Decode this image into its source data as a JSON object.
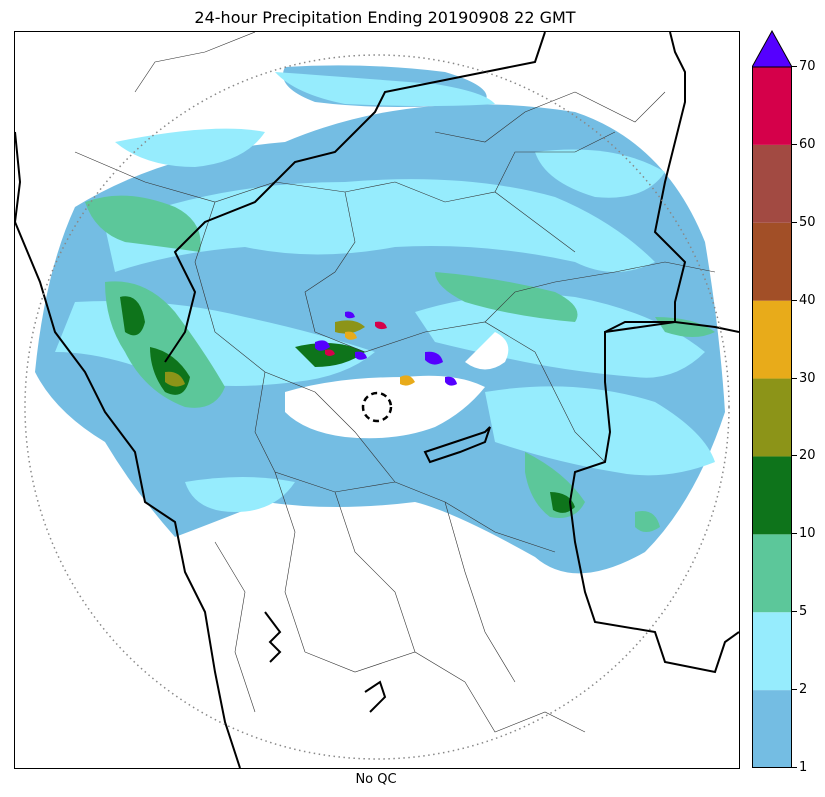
{
  "title": "24-hour Precipitation Ending 20190908 22 GMT",
  "xlabel": "No QC",
  "colorbar": {
    "levels": [
      "1",
      "2",
      "5",
      "10",
      "20",
      "30",
      "40",
      "50",
      "60",
      "70"
    ],
    "colors": [
      "#74bde3",
      "#96ecfd",
      "#5cc79a",
      "#0e741b",
      "#8c9418",
      "#e8ab1a",
      "#a24f27",
      "#a24a42",
      "#d5004a"
    ],
    "extend_color": "#5500ff"
  },
  "map": {
    "radar_range_ring": "dotted",
    "radar_site_marker": "dashed-circle",
    "palette": {
      "level1": "#74bde3",
      "level2": "#96ecfd",
      "level3": "#5cc79a",
      "level4": "#0e741b",
      "level5": "#8c9418",
      "level6": "#e8ab1a",
      "level7": "#a24f27",
      "level9": "#d5004a",
      "level10": "#5500ff"
    }
  }
}
